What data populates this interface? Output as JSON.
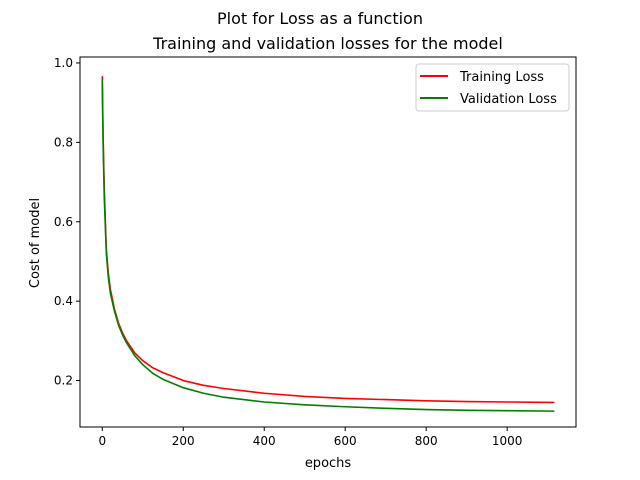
{
  "chart_data": {
    "type": "line",
    "suptitle": "Plot for Loss as a function",
    "title": "Training and validation losses for the model",
    "xlabel": "epochs",
    "ylabel": "Cost of model",
    "xlim": [
      -55,
      1170
    ],
    "ylim": [
      0.083,
      1.015
    ],
    "xticks": [
      0,
      200,
      400,
      600,
      800,
      1000
    ],
    "yticks": [
      0.2,
      0.4,
      0.6,
      0.8,
      1.0
    ],
    "xtick_labels": [
      "0",
      "200",
      "400",
      "600",
      "800",
      "1000"
    ],
    "ytick_labels": [
      "0.2",
      "0.4",
      "0.6",
      "0.8",
      "1.0"
    ],
    "grid": false,
    "legend_position": "top-right",
    "series": [
      {
        "name": "Training Loss",
        "color": "#ff0000",
        "x": [
          0,
          2,
          5,
          10,
          15,
          20,
          30,
          40,
          50,
          60,
          80,
          100,
          125,
          150,
          200,
          250,
          300,
          400,
          500,
          600,
          700,
          800,
          900,
          1000,
          1115
        ],
        "y": [
          0.965,
          0.82,
          0.68,
          0.53,
          0.47,
          0.43,
          0.38,
          0.345,
          0.32,
          0.3,
          0.27,
          0.25,
          0.232,
          0.22,
          0.2,
          0.188,
          0.18,
          0.168,
          0.16,
          0.155,
          0.152,
          0.149,
          0.147,
          0.146,
          0.145
        ]
      },
      {
        "name": "Validation Loss",
        "color": "#008000",
        "x": [
          0,
          2,
          5,
          10,
          15,
          20,
          30,
          40,
          50,
          60,
          80,
          100,
          125,
          150,
          200,
          250,
          300,
          400,
          500,
          600,
          700,
          800,
          900,
          1000,
          1115
        ],
        "y": [
          0.955,
          0.8,
          0.66,
          0.52,
          0.46,
          0.42,
          0.375,
          0.34,
          0.315,
          0.295,
          0.263,
          0.24,
          0.218,
          0.203,
          0.182,
          0.168,
          0.158,
          0.146,
          0.139,
          0.134,
          0.13,
          0.127,
          0.125,
          0.124,
          0.123
        ]
      }
    ]
  }
}
